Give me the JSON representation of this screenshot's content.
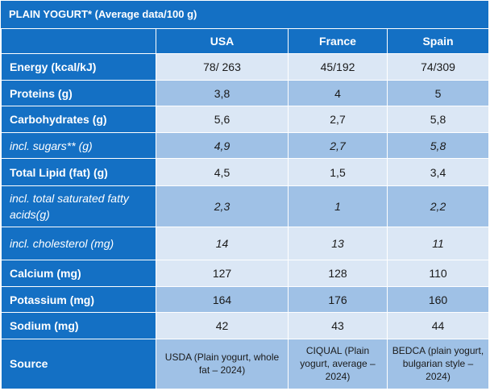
{
  "title": "PLAIN YOGURT* (Average data/100 g)",
  "columns": [
    "USA",
    "France",
    "Spain"
  ],
  "rows": [
    {
      "label": "Energy (kcal/kJ)",
      "values": [
        "78/ 263",
        "45/192",
        "74/309"
      ]
    },
    {
      "label": "Proteins (g)",
      "values": [
        "3,8",
        "4",
        "5"
      ]
    },
    {
      "label": "Carbohydrates (g)",
      "values": [
        "5,6",
        "2,7",
        "5,8"
      ]
    },
    {
      "label": "incl. sugars** (g)",
      "values": [
        "4,9",
        "2,7",
        "5,8"
      ]
    },
    {
      "label": "Total Lipid (fat) (g)",
      "values": [
        "4,5",
        "1,5",
        "3,4"
      ]
    },
    {
      "label": "incl. total saturated fatty acids(g)",
      "values": [
        "2,3",
        "1",
        "2,2"
      ]
    },
    {
      "label": "incl. cholesterol (mg)",
      "values": [
        "14",
        "13",
        "11"
      ]
    },
    {
      "label": "Calcium (mg)",
      "values": [
        "127",
        "128",
        "110"
      ]
    },
    {
      "label": "Potassium (mg)",
      "values": [
        "164",
        "176",
        "160"
      ]
    },
    {
      "label": "Sodium (mg)",
      "values": [
        "42",
        "43",
        "44"
      ]
    },
    {
      "label": "Source",
      "values": [
        "USDA (Plain yogurt, whole fat – 2024)",
        "CIQUAL (Plain yogurt, average – 2024)",
        "BEDCA (plain yogurt, bulgarian style – 2024)"
      ]
    }
  ],
  "colors": {
    "header_blue": "#1470c4",
    "row_light": "#dbe7f5",
    "row_dark": "#9fc1e6"
  }
}
